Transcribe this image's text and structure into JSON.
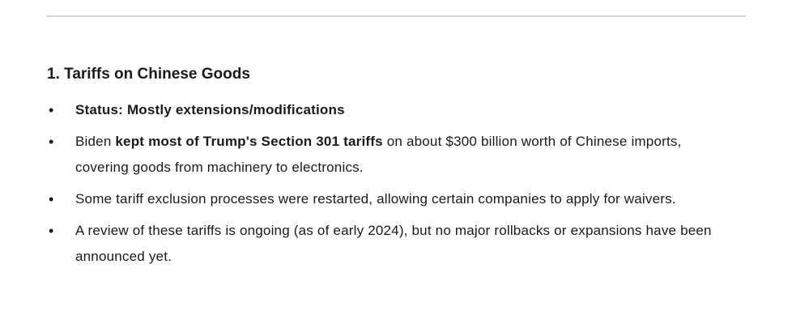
{
  "heading": "1. Tariffs on Chinese Goods",
  "bullets": [
    {
      "bold": "Status: Mostly extensions/modifications",
      "pre": "",
      "post": ""
    },
    {
      "pre": "Biden ",
      "bold": "kept most of Trump's Section 301 tariffs",
      "post": " on about $300 billion worth of Chinese imports, covering goods from machinery to electronics."
    },
    {
      "pre": "Some tariff exclusion processes were restarted, allowing certain companies to apply for waivers.",
      "bold": "",
      "post": ""
    },
    {
      "pre": "A review of these tariffs is ongoing (as of early 2024), but no major rollbacks or expansions have been announced yet.",
      "bold": "",
      "post": ""
    }
  ]
}
